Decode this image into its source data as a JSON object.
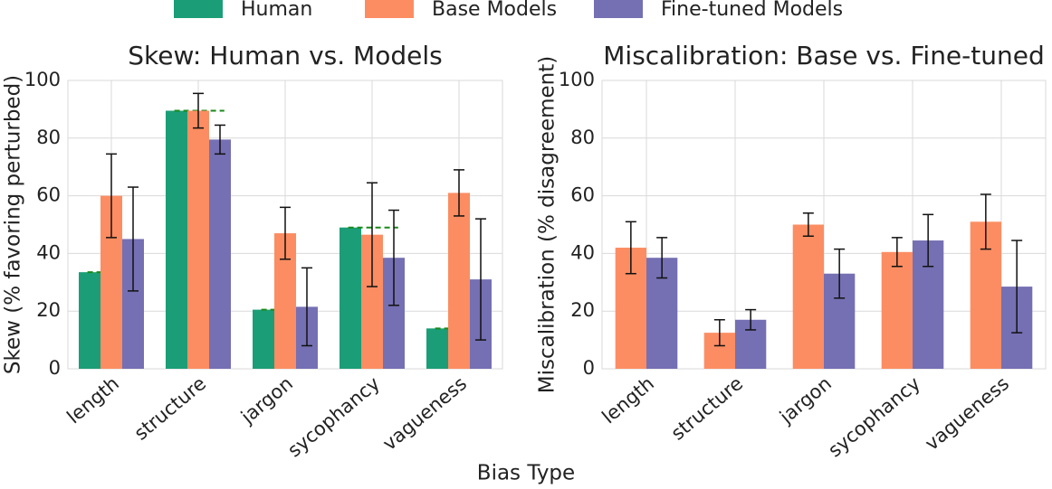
{
  "chart_data": [
    {
      "type": "bar",
      "title": "Skew: Human vs. Models",
      "ylabel": "Skew (% favoring perturbed)",
      "xlabel": "Bias Type",
      "categories": [
        "length",
        "structure",
        "jargon",
        "sycophancy",
        "vagueness"
      ],
      "series": [
        {
          "name": "Human",
          "color": "#1b9e77",
          "values": [
            33.5,
            89.5,
            20.5,
            49,
            14
          ],
          "reference_line": true
        },
        {
          "name": "Base Models",
          "color": "#fc8d62",
          "values": [
            60,
            89.5,
            47,
            46.5,
            61
          ],
          "errors": [
            14.5,
            6,
            9,
            18,
            8
          ]
        },
        {
          "name": "Fine-tuned Models",
          "color": "#7570b3",
          "values": [
            45,
            79.5,
            21.5,
            38.5,
            31
          ],
          "errors": [
            18,
            5,
            13.5,
            16.5,
            21
          ]
        }
      ],
      "ylim": [
        0,
        100
      ],
      "yticks": [
        0,
        20,
        40,
        60,
        80,
        100
      ],
      "grid": true
    },
    {
      "type": "bar",
      "title": "Miscalibration: Base vs. Fine-tuned",
      "ylabel": "Miscalibration (% disagreement)",
      "categories": [
        "length",
        "structure",
        "jargon",
        "sycophancy",
        "vagueness"
      ],
      "series": [
        {
          "name": "Base Models",
          "color": "#fc8d62",
          "values": [
            42,
            12.5,
            50,
            40.5,
            51
          ],
          "errors": [
            9,
            4.5,
            4,
            5,
            9.5
          ]
        },
        {
          "name": "Fine-tuned Models",
          "color": "#7570b3",
          "values": [
            38.5,
            17,
            33,
            44.5,
            28.5
          ],
          "errors": [
            7,
            3.5,
            8.5,
            9,
            16
          ]
        }
      ],
      "ylim": [
        0,
        100
      ],
      "yticks": [
        0,
        20,
        40,
        60,
        80,
        100
      ],
      "grid": true
    }
  ]
}
